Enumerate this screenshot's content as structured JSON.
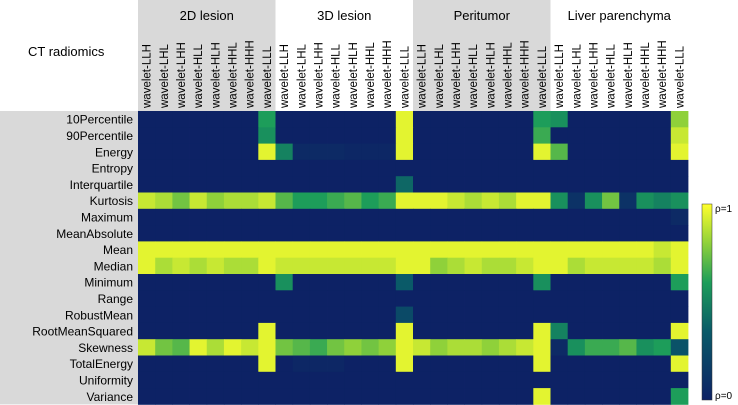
{
  "chart_data": {
    "type": "heatmap",
    "corner_title": "CT radiomics",
    "groups": [
      "2D lesion",
      "3D lesion",
      "Peritumor",
      "Liver parenchyma"
    ],
    "group_shaded": [
      true,
      false,
      true,
      false
    ],
    "wavelets": [
      "wavelet-LLH",
      "wavelet-LHL",
      "wavelet-LHH",
      "wavelet-HLL",
      "wavelet-HLH",
      "wavelet-HHL",
      "wavelet-HHH",
      "wavelet-LLL"
    ],
    "features": [
      "10Percentile",
      "90Percentile",
      "Energy",
      "Entropy",
      "Interquartile",
      "Kurtosis",
      "Maximum",
      "MeanAbsolute",
      "Mean",
      "Median",
      "Minimum",
      "Range",
      "RobustMean",
      "RootMeanSquared",
      "Skewness",
      "TotalEnergy",
      "Uniformity",
      "Variance"
    ],
    "colorbar": {
      "top_label": "ρ=1",
      "bottom_label": "ρ=0",
      "range": [
        0,
        1
      ]
    },
    "values": [
      [
        0,
        0,
        0,
        0,
        0,
        0,
        0,
        0.6,
        0,
        0,
        0,
        0,
        0,
        0,
        0,
        0.95,
        0,
        0,
        0,
        0,
        0,
        0,
        0,
        0.6,
        0.55,
        0,
        0,
        0,
        0,
        0,
        0,
        0.8
      ],
      [
        0,
        0,
        0,
        0,
        0,
        0,
        0,
        0.55,
        0,
        0,
        0,
        0,
        0,
        0,
        0,
        0.95,
        0,
        0,
        0,
        0,
        0,
        0,
        0,
        0.65,
        0,
        0,
        0,
        0,
        0,
        0,
        0,
        0.9
      ],
      [
        0,
        0,
        0,
        0,
        0,
        0,
        0,
        0.95,
        0.5,
        0.05,
        0.05,
        0.05,
        0.03,
        0.03,
        0.03,
        0.95,
        0,
        0,
        0,
        0,
        0,
        0,
        0,
        0.95,
        0.7,
        0,
        0,
        0,
        0,
        0,
        0,
        0.95
      ],
      [
        0,
        0,
        0,
        0,
        0,
        0,
        0,
        0,
        0,
        0,
        0,
        0,
        0,
        0,
        0,
        0,
        0,
        0,
        0,
        0,
        0,
        0,
        0,
        0,
        0,
        0,
        0,
        0,
        0,
        0,
        0,
        0
      ],
      [
        0,
        0,
        0,
        0,
        0,
        0,
        0,
        0,
        0,
        0,
        0,
        0,
        0,
        0,
        0,
        0.4,
        0,
        0,
        0,
        0,
        0,
        0,
        0,
        0,
        0,
        0,
        0,
        0,
        0,
        0,
        0,
        0
      ],
      [
        0.9,
        0.85,
        0.75,
        0.9,
        0.8,
        0.85,
        0.85,
        0.9,
        0.7,
        0.6,
        0.6,
        0.65,
        0.7,
        0.6,
        0.65,
        0.95,
        0.95,
        0.95,
        0.9,
        0.85,
        0.9,
        0.85,
        0.95,
        0.95,
        0.55,
        0.1,
        0.55,
        0.75,
        0.1,
        0.55,
        0.5,
        0.55
      ],
      [
        0,
        0,
        0,
        0,
        0,
        0,
        0,
        0,
        0,
        0,
        0,
        0,
        0,
        0,
        0,
        0,
        0,
        0,
        0,
        0,
        0,
        0,
        0,
        0,
        0,
        0,
        0,
        0,
        0,
        0,
        0,
        0.05
      ],
      [
        0,
        0,
        0,
        0,
        0,
        0,
        0,
        0,
        0,
        0,
        0,
        0,
        0,
        0,
        0,
        0,
        0,
        0,
        0,
        0,
        0,
        0,
        0,
        0,
        0,
        0,
        0,
        0,
        0,
        0,
        0,
        0
      ],
      [
        0.95,
        0.95,
        0.95,
        0.95,
        0.95,
        0.95,
        0.95,
        0.95,
        0.95,
        0.95,
        0.95,
        0.95,
        0.95,
        0.95,
        0.95,
        0.95,
        0.95,
        0.95,
        0.95,
        0.95,
        0.95,
        0.95,
        0.95,
        0.95,
        0.95,
        0.95,
        0.95,
        0.95,
        0.95,
        0.95,
        0.9,
        0.95
      ],
      [
        0.95,
        0.85,
        0.9,
        0.85,
        0.9,
        0.85,
        0.85,
        0.95,
        0.9,
        0.9,
        0.9,
        0.9,
        0.9,
        0.9,
        0.9,
        0.95,
        0.95,
        0.8,
        0.85,
        0.9,
        0.85,
        0.85,
        0.9,
        0.95,
        0.95,
        0.85,
        0.9,
        0.9,
        0.9,
        0.9,
        0.85,
        0.95
      ],
      [
        0,
        0,
        0,
        0,
        0,
        0,
        0,
        0,
        0.55,
        0,
        0,
        0,
        0,
        0,
        0,
        0.35,
        0,
        0,
        0,
        0,
        0,
        0,
        0,
        0.55,
        0,
        0,
        0,
        0,
        0,
        0,
        0,
        0.6
      ],
      [
        0,
        0,
        0,
        0,
        0,
        0,
        0,
        0,
        0,
        0,
        0,
        0,
        0,
        0,
        0,
        0,
        0,
        0,
        0,
        0,
        0,
        0,
        0,
        0,
        0,
        0,
        0,
        0,
        0,
        0,
        0,
        0
      ],
      [
        0,
        0,
        0,
        0,
        0,
        0,
        0,
        0,
        0,
        0,
        0,
        0,
        0,
        0,
        0,
        0.25,
        0,
        0,
        0,
        0,
        0,
        0,
        0,
        0,
        0,
        0,
        0,
        0,
        0,
        0,
        0,
        0
      ],
      [
        0,
        0,
        0,
        0,
        0,
        0,
        0,
        0.95,
        0,
        0,
        0,
        0,
        0,
        0,
        0,
        0.95,
        0,
        0,
        0,
        0,
        0,
        0,
        0,
        0.95,
        0.5,
        0,
        0,
        0,
        0,
        0,
        0,
        0.95
      ],
      [
        0.9,
        0.75,
        0.7,
        0.95,
        0.85,
        0.95,
        0.9,
        0.95,
        0.75,
        0.7,
        0.65,
        0.75,
        0.8,
        0.75,
        0.8,
        0.95,
        0.9,
        0.8,
        0.85,
        0.85,
        0.8,
        0.85,
        0.9,
        0.95,
        0.05,
        0.55,
        0.65,
        0.65,
        0.7,
        0.55,
        0.6,
        0.3
      ],
      [
        0,
        0,
        0,
        0,
        0,
        0,
        0,
        0.95,
        0,
        0.03,
        0.03,
        0.03,
        0,
        0,
        0,
        0.95,
        0,
        0,
        0,
        0,
        0,
        0,
        0,
        0.95,
        0,
        0,
        0,
        0,
        0,
        0,
        0,
        0.95
      ],
      [
        0,
        0,
        0,
        0,
        0,
        0,
        0,
        0,
        0,
        0,
        0,
        0,
        0,
        0,
        0,
        0,
        0,
        0,
        0,
        0,
        0,
        0,
        0,
        0,
        0,
        0,
        0,
        0,
        0,
        0,
        0,
        0
      ],
      [
        0,
        0,
        0,
        0,
        0,
        0,
        0,
        0,
        0,
        0,
        0,
        0,
        0,
        0,
        0,
        0,
        0,
        0,
        0,
        0,
        0,
        0,
        0,
        0.95,
        0,
        0,
        0,
        0,
        0,
        0,
        0,
        0.6
      ]
    ]
  }
}
